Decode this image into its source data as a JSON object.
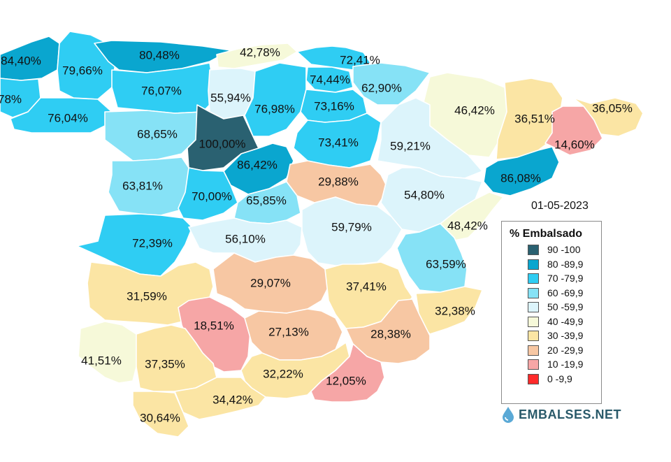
{
  "map": {
    "date": "01-05-2023",
    "regions": [
      {
        "id": "lugo-coast-west",
        "value": "84,40%",
        "color": "#0aa6cf"
      },
      {
        "id": "a-coruna-partial",
        "value": "78%",
        "color": "#2fcdf3"
      },
      {
        "id": "lugo",
        "value": "79,66%",
        "color": "#2fcdf3"
      },
      {
        "id": "asturias",
        "value": "80,48%",
        "color": "#0aa6cf"
      },
      {
        "id": "cantabria",
        "value": "42,78%",
        "color": "#f6f9d9"
      },
      {
        "id": "alava",
        "value": "72,41%",
        "color": "#2fcdf3"
      },
      {
        "id": "burgos-north",
        "value": "74,44%",
        "color": "#2fcdf3"
      },
      {
        "id": "la-rioja",
        "value": "62,90%",
        "color": "#86e2f6"
      },
      {
        "id": "leon",
        "value": "76,07%",
        "color": "#2fcdf3"
      },
      {
        "id": "palencia",
        "value": "55,94%",
        "color": "#dcf4fb"
      },
      {
        "id": "burgos",
        "value": "76,98%",
        "color": "#2fcdf3"
      },
      {
        "id": "soria-north",
        "value": "73,16%",
        "color": "#2fcdf3"
      },
      {
        "id": "ourense",
        "value": "76,04%",
        "color": "#2fcdf3"
      },
      {
        "id": "navarra",
        "value": "46,42%",
        "color": "#f6f9d9"
      },
      {
        "id": "huesca",
        "value": "36,51%",
        "color": "#fbe5a4"
      },
      {
        "id": "girona",
        "value": "36,05%",
        "color": "#fbe5a4"
      },
      {
        "id": "zamora",
        "value": "68,65%",
        "color": "#86e2f6"
      },
      {
        "id": "valladolid",
        "value": "100,00%",
        "color": "#2a6171"
      },
      {
        "id": "soria",
        "value": "73,41%",
        "color": "#2fcdf3"
      },
      {
        "id": "zaragoza",
        "value": "59,21%",
        "color": "#dcf4fb"
      },
      {
        "id": "lleida",
        "value": "14,60%",
        "color": "#f6a6a6"
      },
      {
        "id": "segovia",
        "value": "86,42%",
        "color": "#0aa6cf"
      },
      {
        "id": "guadalajara",
        "value": "29,88%",
        "color": "#f7c7a3"
      },
      {
        "id": "barcelona",
        "value": "86,08%",
        "color": "#0aa6cf"
      },
      {
        "id": "salamanca",
        "value": "63,81%",
        "color": "#86e2f6"
      },
      {
        "id": "avila",
        "value": "70,00%",
        "color": "#2fcdf3"
      },
      {
        "id": "madrid",
        "value": "65,85%",
        "color": "#86e2f6"
      },
      {
        "id": "teruel",
        "value": "54,80%",
        "color": "#dcf4fb"
      },
      {
        "id": "tarragona",
        "value": "48,42%",
        "color": "#f6f9d9"
      },
      {
        "id": "caceres",
        "value": "72,39%",
        "color": "#2fcdf3"
      },
      {
        "id": "toledo",
        "value": "56,10%",
        "color": "#dcf4fb"
      },
      {
        "id": "cuenca",
        "value": "59,79%",
        "color": "#dcf4fb"
      },
      {
        "id": "valencia",
        "value": "63,59%",
        "color": "#86e2f6"
      },
      {
        "id": "badajoz",
        "value": "31,59%",
        "color": "#fbe5a4"
      },
      {
        "id": "ciudad-real",
        "value": "29,07%",
        "color": "#f7c7a3"
      },
      {
        "id": "albacete",
        "value": "37,41%",
        "color": "#fbe5a4"
      },
      {
        "id": "alicante",
        "value": "32,38%",
        "color": "#fbe5a4"
      },
      {
        "id": "cordoba",
        "value": "18,51%",
        "color": "#f6a6a6"
      },
      {
        "id": "jaen",
        "value": "27,13%",
        "color": "#f7c7a3"
      },
      {
        "id": "murcia",
        "value": "28,38%",
        "color": "#f7c7a3"
      },
      {
        "id": "huelva",
        "value": "41,51%",
        "color": "#f6f9d9"
      },
      {
        "id": "sevilla",
        "value": "37,35%",
        "color": "#fbe5a4"
      },
      {
        "id": "granada",
        "value": "32,22%",
        "color": "#fbe5a4"
      },
      {
        "id": "almeria",
        "value": "12,05%",
        "color": "#f6a6a6"
      },
      {
        "id": "malaga",
        "value": "34,42%",
        "color": "#fbe5a4"
      },
      {
        "id": "cadiz",
        "value": "30,64%",
        "color": "#fbe5a4"
      }
    ]
  },
  "legend": {
    "title": "% Embalsado",
    "items": [
      {
        "label": "90 -100",
        "color": "#2a6171"
      },
      {
        "label": "80 -89,9",
        "color": "#0aa6cf"
      },
      {
        "label": "70 -79,9",
        "color": "#2fcdf3"
      },
      {
        "label": "60 -69,9",
        "color": "#86e2f6"
      },
      {
        "label": "50 -59,9",
        "color": "#dcf4fb"
      },
      {
        "label": "40 -49,9",
        "color": "#f6f9d9"
      },
      {
        "label": "30 -39,9",
        "color": "#fbe5a4"
      },
      {
        "label": "20 -29,9",
        "color": "#f7c7a3"
      },
      {
        "label": "10 -19,9",
        "color": "#f6a6a6"
      },
      {
        "label": "0 -9,9",
        "color": "#ff2a2a"
      }
    ]
  },
  "brand": {
    "text": "EMBALSES.NET",
    "icon": "water-drop-icon",
    "color": "#2a5a6a"
  }
}
